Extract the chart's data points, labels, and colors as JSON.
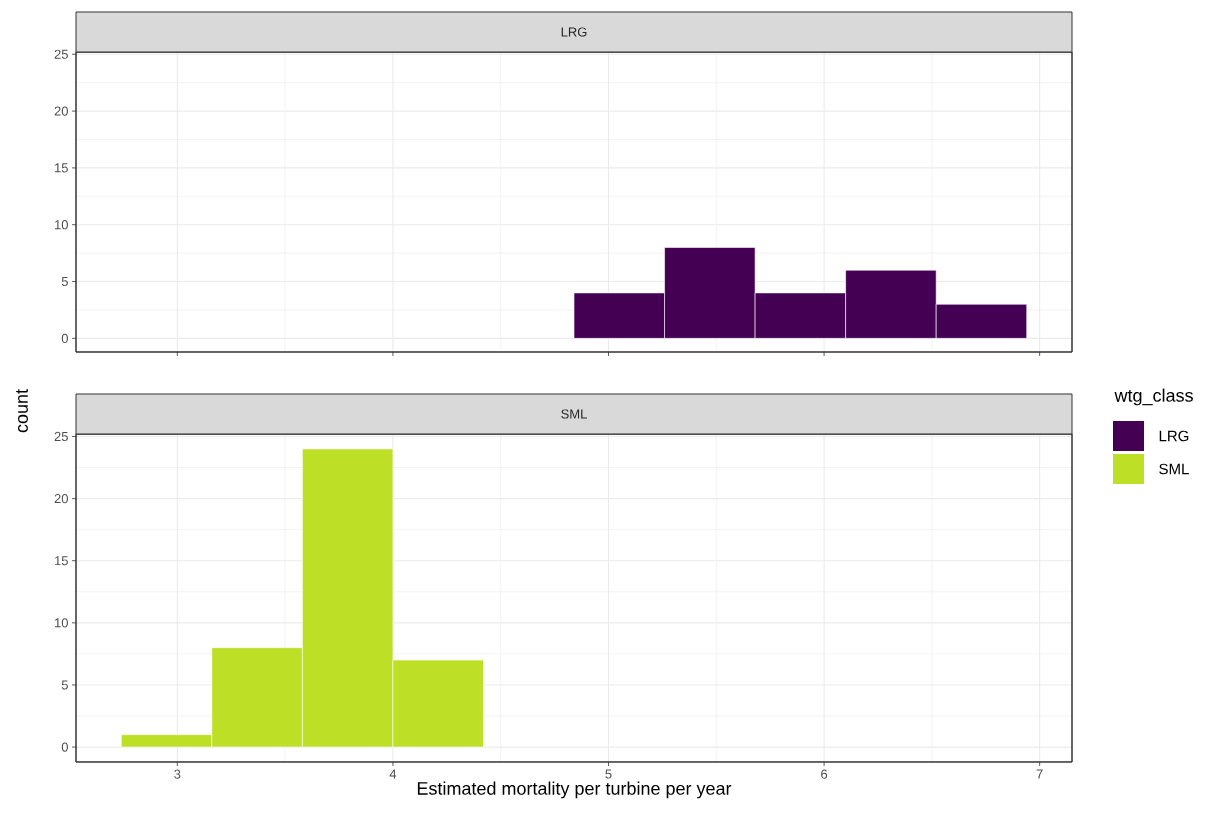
{
  "chart_data": [
    {
      "type": "histogram",
      "title": "LRG",
      "ylabel": "count",
      "legend_title": "wtg_class",
      "legend": "right",
      "grid": true,
      "tick_labels": "y",
      "bins": [
        2.74,
        3.16,
        3.58,
        4.0,
        4.42,
        4.84,
        5.26,
        5.68,
        6.1,
        6.52,
        6.94
      ],
      "series": [
        {
          "name": "LRG",
          "color": "#440154",
          "values": [
            0,
            0,
            0,
            0,
            0,
            4,
            8,
            4,
            6,
            3
          ]
        }
      ],
      "xlim": [
        2.53,
        7.15
      ],
      "ylim": [
        -1.2,
        25.2
      ],
      "xticks": [
        3,
        4,
        5,
        6,
        7
      ],
      "yticks": [
        0,
        5,
        10,
        15,
        20,
        25
      ]
    },
    {
      "type": "histogram",
      "title": "SML",
      "xlabel": "Estimated mortality per turbine per year",
      "legend": "right",
      "grid": true,
      "bins": [
        2.74,
        3.16,
        3.58,
        4.0,
        4.42,
        4.84,
        5.26,
        5.68,
        6.1,
        6.52,
        6.94
      ],
      "series": [
        {
          "name": "SML",
          "color": "#bddf26",
          "values": [
            1,
            8,
            24,
            7,
            0,
            0,
            0,
            0,
            0,
            0
          ]
        }
      ],
      "xlim": [
        2.53,
        7.15
      ],
      "ylim": [
        -1.2,
        25.2
      ],
      "xticks": [
        3,
        4,
        5,
        6,
        7
      ],
      "yticks": [
        0,
        5,
        10,
        15,
        20,
        25
      ]
    }
  ]
}
